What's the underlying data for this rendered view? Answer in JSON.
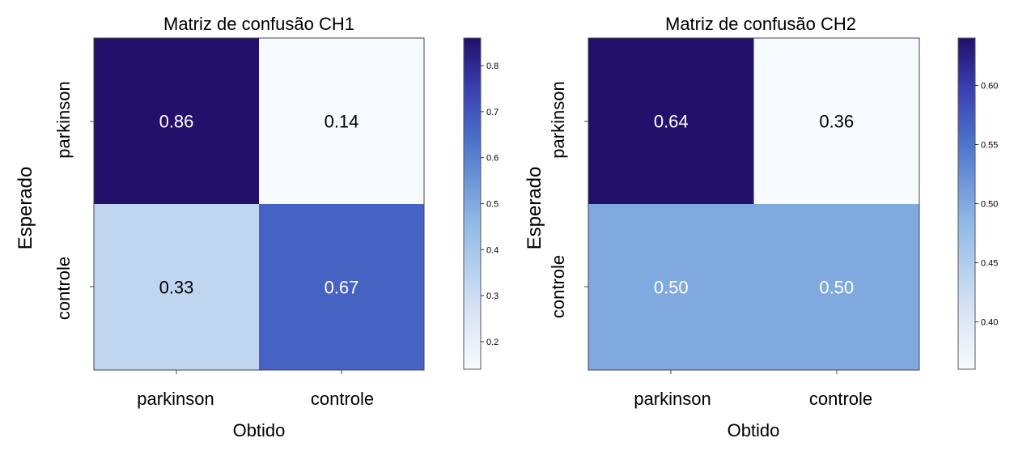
{
  "chart_data": [
    {
      "type": "heatmap",
      "title": "Matriz de confusão CH1",
      "xlabel": "Obtido",
      "ylabel": "Esperado",
      "x_categories": [
        "parkinson",
        "controle"
      ],
      "y_categories": [
        "parkinson",
        "controle"
      ],
      "values": [
        [
          0.86,
          0.14
        ],
        [
          0.33,
          0.67
        ]
      ],
      "cell_labels": [
        [
          "0.86",
          "0.14"
        ],
        [
          "0.33",
          "0.67"
        ]
      ],
      "colorbar": {
        "range": [
          0.14,
          0.86
        ],
        "ticks": [
          0.2,
          0.3,
          0.4,
          0.5,
          0.6,
          0.7,
          0.8
        ],
        "tick_labels": [
          "0.2",
          "0.3",
          "0.4",
          "0.5",
          "0.6",
          "0.7",
          "0.8"
        ]
      },
      "colormap": "Blues-to-indigo"
    },
    {
      "type": "heatmap",
      "title": "Matriz de confusão CH2",
      "xlabel": "Obtido",
      "ylabel": "Esperado",
      "x_categories": [
        "parkinson",
        "controle"
      ],
      "y_categories": [
        "parkinson",
        "controle"
      ],
      "values": [
        [
          0.64,
          0.36
        ],
        [
          0.5,
          0.5
        ]
      ],
      "cell_labels": [
        [
          "0.64",
          "0.36"
        ],
        [
          "0.50",
          "0.50"
        ]
      ],
      "colorbar": {
        "range": [
          0.36,
          0.64
        ],
        "ticks": [
          0.4,
          0.45,
          0.5,
          0.55,
          0.6
        ],
        "tick_labels": [
          "0.40",
          "0.45",
          "0.50",
          "0.55",
          "0.60"
        ]
      },
      "colormap": "Blues-to-indigo"
    }
  ],
  "colors": {
    "low": "#f7fbff",
    "mid": "#6aa3da",
    "high": "#22106a"
  }
}
